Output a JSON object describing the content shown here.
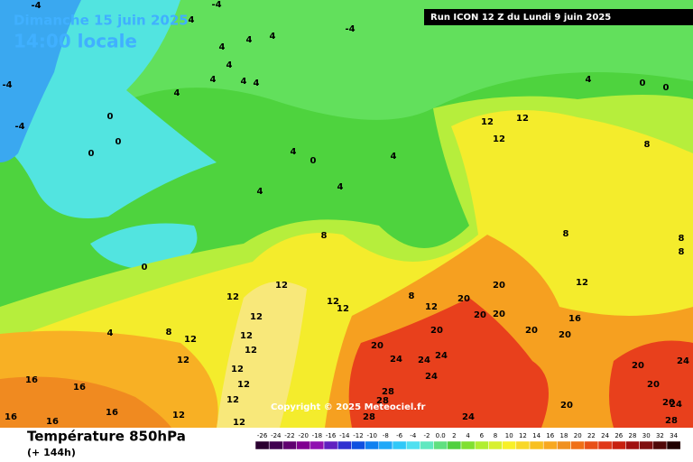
{
  "header": {
    "date": "Dimanche 15 juin 2025",
    "time": "14:00 locale",
    "run": "Run ICON 12 Z du Lundi 9 juin 2025"
  },
  "copyright": "Copyright © 2025 Meteociel.fr",
  "footer": {
    "title": "Température 850hPa",
    "lead": "(+ 144h)"
  },
  "scale": {
    "labels": [
      -26,
      -24,
      -22,
      -20,
      -18,
      -16,
      -14,
      -12,
      -10,
      -8,
      -6,
      -4,
      -2,
      "0.0",
      2,
      4,
      6,
      8,
      10,
      12,
      14,
      16,
      18,
      20,
      22,
      24,
      26,
      28,
      30,
      32,
      34
    ]
  },
  "map_labels": [
    "-4",
    "4",
    "-4",
    "4",
    "4",
    "4",
    "4",
    "4",
    "4",
    "4",
    "4",
    "0",
    "0",
    "0",
    "-4",
    "-4",
    "4",
    "0",
    "4",
    "4",
    "4",
    "8",
    "0",
    "12",
    "12",
    "12",
    "8",
    "8",
    "12",
    "12",
    "12",
    "12",
    "8",
    "12",
    "20",
    "20",
    "20",
    "20",
    "12",
    "16",
    "20",
    "20",
    "20",
    "24",
    "24",
    "24",
    "24",
    "20",
    "8",
    "12",
    "12",
    "12",
    "12",
    "12",
    "12",
    "4",
    "16",
    "16",
    "16",
    "16",
    "16",
    "12",
    "12",
    "28",
    "28",
    "28",
    "24",
    "20",
    "20",
    "24",
    "20",
    "20",
    "24",
    "28",
    "8",
    "8",
    "-4",
    "4",
    "0",
    "0",
    "12",
    "12"
  ]
}
